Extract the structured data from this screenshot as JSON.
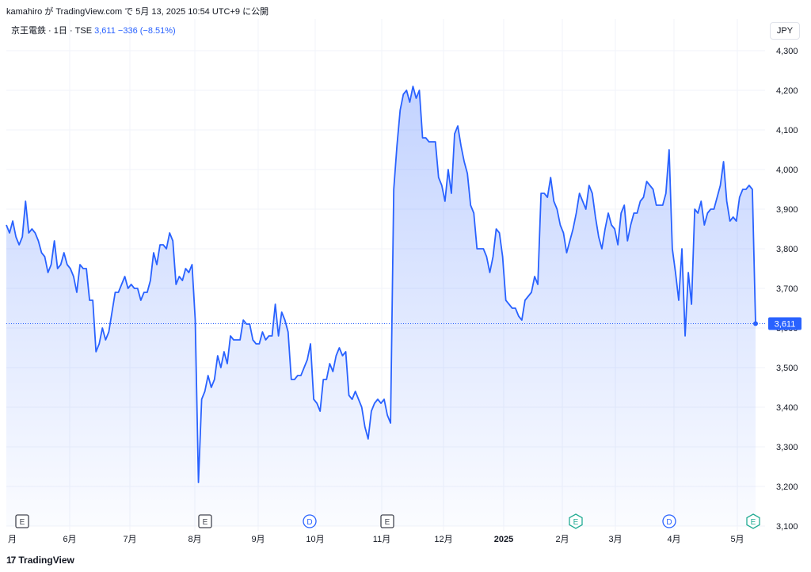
{
  "header": {
    "publisher_line": "kamahiro が TradingView.com で 5月 13, 2025 10:54 UTC+9 に公開",
    "symbol": "京王電鉄 · 1日 · TSE",
    "last_price": "3,611",
    "change": "−336 (−8.51%)",
    "currency": "JPY"
  },
  "footer": {
    "logo_mark": "17",
    "brand": "TradingView"
  },
  "colors": {
    "line": "#2962ff",
    "fill": "#2962ff",
    "grid": "#f0f3fa",
    "text": "#131722"
  },
  "chart_data": {
    "type": "area",
    "title": "",
    "xlabel": "",
    "ylabel": "",
    "ylim": [
      3100,
      4300
    ],
    "y_ticks": [
      "3,100",
      "3,200",
      "3,300",
      "3,400",
      "3,500",
      "3,600",
      "3,700",
      "3,800",
      "3,900",
      "4,000",
      "4,100",
      "4,200",
      "4,300"
    ],
    "x_ticks": [
      "月",
      "6月",
      "7月",
      "8月",
      "9月",
      "10月",
      "11月",
      "12月",
      "2025",
      "2月",
      "3月",
      "4月",
      "5月"
    ],
    "last_price_label": "3,611",
    "grid": true,
    "series": [
      {
        "values": [
          3860,
          3840,
          3870,
          3830,
          3810,
          3830,
          3920,
          3840,
          3850,
          3840,
          3820,
          3790,
          3780,
          3740,
          3760,
          3820,
          3750,
          3760,
          3790,
          3760,
          3750,
          3730,
          3690,
          3760,
          3750,
          3750,
          3670,
          3670,
          3540,
          3560,
          3600,
          3570,
          3590,
          3640,
          3690,
          3690,
          3710,
          3730,
          3700,
          3710,
          3700,
          3700,
          3670,
          3690,
          3690,
          3720,
          3790,
          3760,
          3810,
          3810,
          3800,
          3840,
          3820,
          3710,
          3730,
          3720,
          3750,
          3740,
          3760,
          3620,
          3210,
          3420,
          3440,
          3480,
          3450,
          3470,
          3530,
          3500,
          3540,
          3510,
          3580,
          3570,
          3570,
          3570,
          3620,
          3610,
          3610,
          3570,
          3560,
          3560,
          3590,
          3570,
          3580,
          3580,
          3660,
          3580,
          3640,
          3620,
          3590,
          3470,
          3470,
          3480,
          3480,
          3500,
          3520,
          3560,
          3420,
          3410,
          3390,
          3470,
          3470,
          3510,
          3490,
          3530,
          3550,
          3530,
          3540,
          3430,
          3420,
          3440,
          3420,
          3400,
          3350,
          3320,
          3390,
          3410,
          3420,
          3410,
          3420,
          3380,
          3360,
          3950,
          4060,
          4150,
          4190,
          4200,
          4170,
          4210,
          4180,
          4200,
          4080,
          4080,
          4070,
          4070,
          4070,
          3980,
          3960,
          3920,
          4000,
          3940,
          4090,
          4110,
          4060,
          4020,
          3990,
          3910,
          3890,
          3800,
          3800,
          3800,
          3780,
          3740,
          3780,
          3850,
          3840,
          3780,
          3670,
          3660,
          3650,
          3650,
          3630,
          3620,
          3670,
          3680,
          3690,
          3730,
          3710,
          3940,
          3940,
          3930,
          3980,
          3920,
          3900,
          3860,
          3840,
          3790,
          3820,
          3850,
          3890,
          3940,
          3920,
          3900,
          3960,
          3940,
          3880,
          3830,
          3800,
          3850,
          3890,
          3860,
          3850,
          3810,
          3890,
          3910,
          3820,
          3860,
          3890,
          3890,
          3920,
          3930,
          3970,
          3960,
          3950,
          3910,
          3910,
          3910,
          3940,
          4050,
          3800,
          3740,
          3670,
          3800,
          3580,
          3740,
          3660,
          3900,
          3890,
          3920,
          3860,
          3890,
          3900,
          3900,
          3930,
          3960,
          4020,
          3920,
          3870,
          3880,
          3870,
          3930,
          3950,
          3950,
          3960,
          3950,
          3611
        ]
      }
    ],
    "event_markers": [
      {
        "label": "E",
        "type": "earnings",
        "position": "5月"
      },
      {
        "label": "E",
        "type": "earnings",
        "position": "8月"
      },
      {
        "label": "D",
        "type": "dividend",
        "position": "9月末"
      },
      {
        "label": "E",
        "type": "earnings",
        "position": "11月"
      },
      {
        "label": "E",
        "type": "earnings",
        "position": "2月"
      },
      {
        "label": "D",
        "type": "dividend",
        "position": "3月末"
      },
      {
        "label": "E",
        "type": "earnings",
        "position": "5月"
      }
    ]
  }
}
